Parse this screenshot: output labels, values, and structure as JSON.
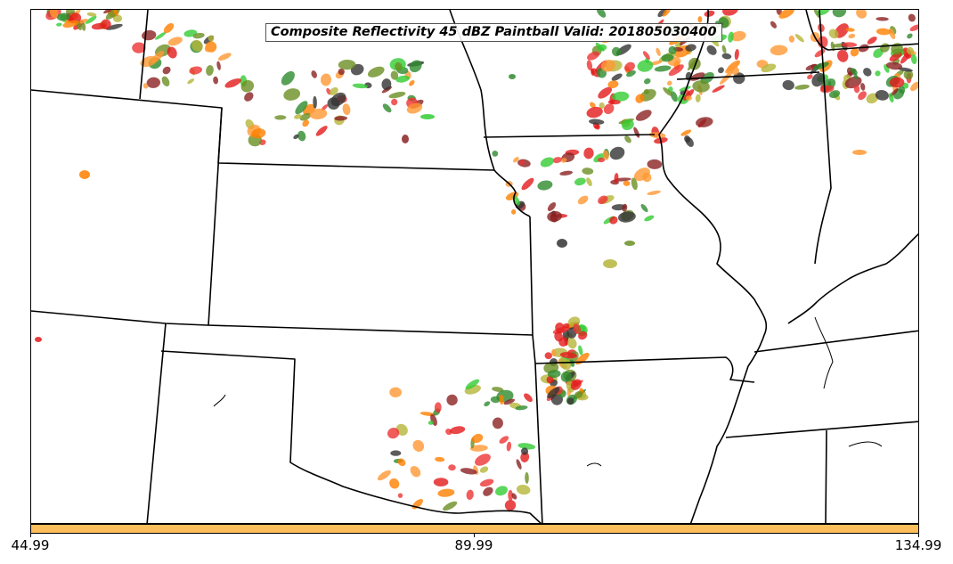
{
  "title": "Composite Reflectivity 45 dBZ Paintball Valid: 201805030400",
  "colorbar": {
    "color": "#fcbf5c",
    "ticks": [
      "44.99",
      "89.99",
      "134.99"
    ]
  },
  "member_colors": [
    "#e41a1c",
    "#ff7f00",
    "#33cc33",
    "#8b2222",
    "#6b8e23",
    "#b5b53a",
    "#2e8b2e",
    "#333333",
    "#ff9933",
    "#ee3333"
  ],
  "storm_regions": [
    {
      "name": "north-plains-cluster",
      "density": "moderate"
    },
    {
      "name": "missouri-illinois-cluster",
      "density": "high"
    },
    {
      "name": "oklahoma-cluster",
      "density": "moderate"
    }
  ]
}
